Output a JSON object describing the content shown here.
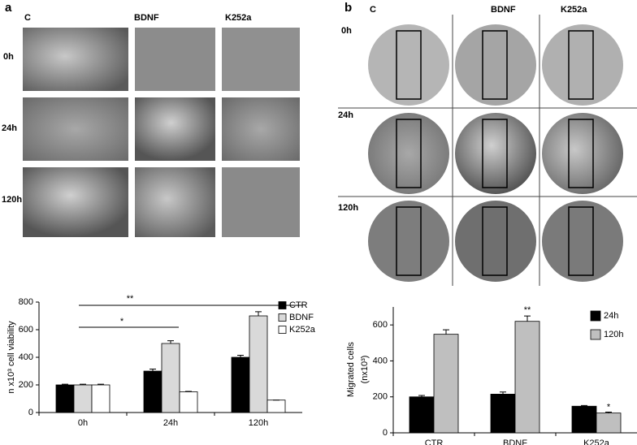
{
  "panels": {
    "a": {
      "label": "a",
      "columns": [
        "C",
        "BDNF",
        "K252a"
      ],
      "rows": [
        "0h",
        "24h",
        "120h"
      ]
    },
    "b": {
      "label": "b",
      "columns": [
        "C",
        "BDNF",
        "K252a"
      ],
      "rows": [
        "0h",
        "24h",
        "120h"
      ]
    }
  },
  "chart_data": [
    {
      "type": "bar",
      "ylabel": "n x10³ cell viability",
      "categories": [
        "0h",
        "24h",
        "120h"
      ],
      "series": [
        {
          "name": "CTR",
          "color": "#000000",
          "values": [
            200,
            300,
            400
          ],
          "errors": [
            5,
            15,
            15
          ]
        },
        {
          "name": "BDNF",
          "color": "#d9d9d9",
          "values": [
            200,
            500,
            700
          ],
          "errors": [
            5,
            20,
            30
          ]
        },
        {
          "name": "K252a",
          "color": "#ffffff",
          "values": [
            200,
            150,
            90
          ],
          "errors": [
            5,
            3,
            0
          ]
        }
      ],
      "ylim": [
        0,
        800
      ],
      "yticks": [
        0,
        200,
        400,
        600,
        800
      ],
      "annotations": [
        "**",
        "*"
      ],
      "legend": "top-right"
    },
    {
      "type": "bar",
      "ylabel": [
        "Migrated  cells",
        "(nx10³)"
      ],
      "categories": [
        "CTR",
        "BDNF",
        "K252a"
      ],
      "series": [
        {
          "name": "24h",
          "color": "#000000",
          "values": [
            200,
            215,
            148
          ],
          "errors": [
            8,
            12,
            4
          ]
        },
        {
          "name": "120h",
          "color": "#bfbfbf",
          "values": [
            548,
            620,
            110
          ],
          "errors": [
            25,
            30,
            5
          ]
        }
      ],
      "ylim": [
        0,
        700
      ],
      "yticks": [
        0,
        200,
        400,
        600
      ],
      "annotations": [
        "**",
        "*"
      ],
      "legend": "top-right"
    }
  ]
}
